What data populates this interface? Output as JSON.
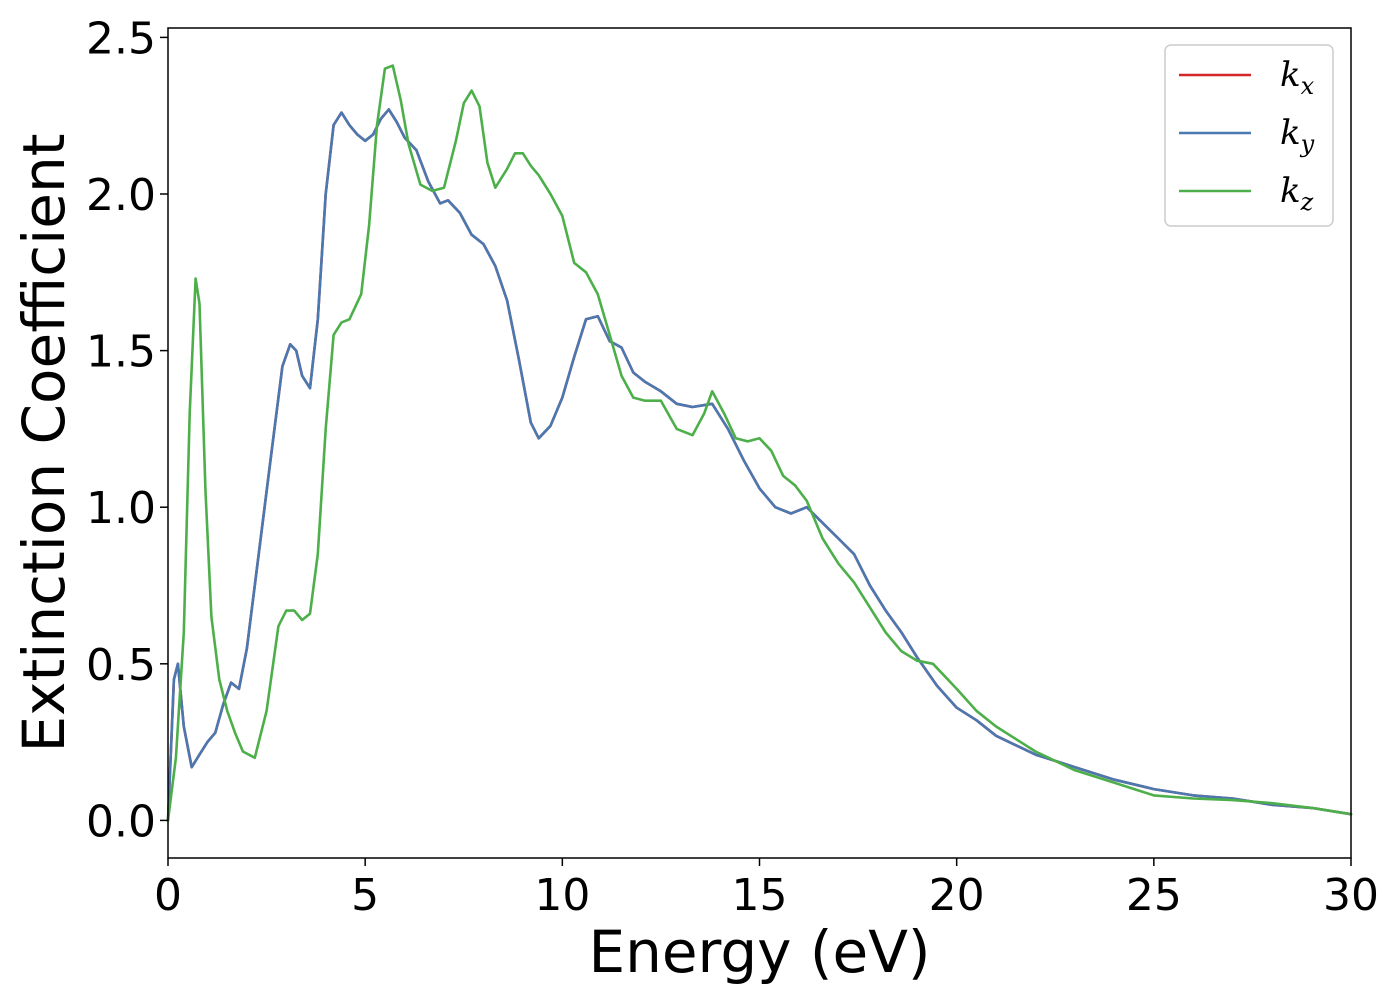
{
  "chart_data": {
    "type": "line",
    "title": "",
    "xlabel": "Energy (eV)",
    "ylabel": "Extinction Coefficient",
    "xlim": [
      0,
      30
    ],
    "ylim": [
      -0.12,
      2.53
    ],
    "xticks": [
      0,
      5,
      10,
      15,
      20,
      25,
      30
    ],
    "xtick_labels": [
      "0",
      "5",
      "10",
      "15",
      "20",
      "25",
      "30"
    ],
    "yticks": [
      0.0,
      0.5,
      1.0,
      1.5,
      2.0,
      2.5
    ],
    "ytick_labels": [
      "0.0",
      "0.5",
      "1.0",
      "1.5",
      "2.0",
      "2.5"
    ],
    "grid": false,
    "legend_position": "top-right",
    "series": [
      {
        "name": "k",
        "subscript": "x",
        "color": "#d62728",
        "x": [
          0,
          0.15,
          0.25,
          0.4,
          0.6,
          0.8,
          1.0,
          1.2,
          1.4,
          1.6,
          1.8,
          2.0,
          2.3,
          2.6,
          2.9,
          3.1,
          3.25,
          3.4,
          3.6,
          3.8,
          4.0,
          4.2,
          4.4,
          4.6,
          4.8,
          5.0,
          5.2,
          5.4,
          5.6,
          5.8,
          6.0,
          6.3,
          6.6,
          6.9,
          7.1,
          7.4,
          7.7,
          8.0,
          8.3,
          8.6,
          8.9,
          9.2,
          9.4,
          9.7,
          10.0,
          10.3,
          10.6,
          10.9,
          11.2,
          11.5,
          11.8,
          12.1,
          12.5,
          12.9,
          13.3,
          13.8,
          14.2,
          14.6,
          15.0,
          15.4,
          15.8,
          16.2,
          16.6,
          17.0,
          17.4,
          17.8,
          18.2,
          18.6,
          19.0,
          19.5,
          20.0,
          20.5,
          21.0,
          22.0,
          23.0,
          24.0,
          25.0,
          26.0,
          27.0,
          28.0,
          29.0,
          30.0
        ],
        "values": [
          0.0,
          0.45,
          0.5,
          0.3,
          0.17,
          0.21,
          0.25,
          0.28,
          0.37,
          0.44,
          0.42,
          0.55,
          0.85,
          1.15,
          1.45,
          1.52,
          1.5,
          1.42,
          1.38,
          1.6,
          2.0,
          2.22,
          2.26,
          2.22,
          2.19,
          2.17,
          2.19,
          2.24,
          2.27,
          2.23,
          2.18,
          2.14,
          2.04,
          1.97,
          1.98,
          1.94,
          1.87,
          1.84,
          1.77,
          1.66,
          1.47,
          1.27,
          1.22,
          1.26,
          1.35,
          1.48,
          1.6,
          1.61,
          1.53,
          1.51,
          1.43,
          1.4,
          1.37,
          1.33,
          1.32,
          1.33,
          1.25,
          1.15,
          1.06,
          1.0,
          0.98,
          1.0,
          0.95,
          0.9,
          0.85,
          0.75,
          0.67,
          0.6,
          0.52,
          0.43,
          0.36,
          0.32,
          0.27,
          0.21,
          0.17,
          0.13,
          0.1,
          0.08,
          0.07,
          0.05,
          0.04,
          0.02
        ]
      },
      {
        "name": "k",
        "subscript": "y",
        "color": "#4a78b0",
        "x": [
          0,
          0.15,
          0.25,
          0.4,
          0.6,
          0.8,
          1.0,
          1.2,
          1.4,
          1.6,
          1.8,
          2.0,
          2.3,
          2.6,
          2.9,
          3.1,
          3.25,
          3.4,
          3.6,
          3.8,
          4.0,
          4.2,
          4.4,
          4.6,
          4.8,
          5.0,
          5.2,
          5.4,
          5.6,
          5.8,
          6.0,
          6.3,
          6.6,
          6.9,
          7.1,
          7.4,
          7.7,
          8.0,
          8.3,
          8.6,
          8.9,
          9.2,
          9.4,
          9.7,
          10.0,
          10.3,
          10.6,
          10.9,
          11.2,
          11.5,
          11.8,
          12.1,
          12.5,
          12.9,
          13.3,
          13.8,
          14.2,
          14.6,
          15.0,
          15.4,
          15.8,
          16.2,
          16.6,
          17.0,
          17.4,
          17.8,
          18.2,
          18.6,
          19.0,
          19.5,
          20.0,
          20.5,
          21.0,
          22.0,
          23.0,
          24.0,
          25.0,
          26.0,
          27.0,
          28.0,
          29.0,
          30.0
        ],
        "values": [
          0.0,
          0.45,
          0.5,
          0.3,
          0.17,
          0.21,
          0.25,
          0.28,
          0.37,
          0.44,
          0.42,
          0.55,
          0.85,
          1.15,
          1.45,
          1.52,
          1.5,
          1.42,
          1.38,
          1.6,
          2.0,
          2.22,
          2.26,
          2.22,
          2.19,
          2.17,
          2.19,
          2.24,
          2.27,
          2.23,
          2.18,
          2.14,
          2.04,
          1.97,
          1.98,
          1.94,
          1.87,
          1.84,
          1.77,
          1.66,
          1.47,
          1.27,
          1.22,
          1.26,
          1.35,
          1.48,
          1.6,
          1.61,
          1.53,
          1.51,
          1.43,
          1.4,
          1.37,
          1.33,
          1.32,
          1.33,
          1.25,
          1.15,
          1.06,
          1.0,
          0.98,
          1.0,
          0.95,
          0.9,
          0.85,
          0.75,
          0.67,
          0.6,
          0.52,
          0.43,
          0.36,
          0.32,
          0.27,
          0.21,
          0.17,
          0.13,
          0.1,
          0.08,
          0.07,
          0.05,
          0.04,
          0.02
        ]
      },
      {
        "name": "k",
        "subscript": "z",
        "color": "#4daf4a",
        "x": [
          0,
          0.2,
          0.4,
          0.55,
          0.7,
          0.8,
          0.95,
          1.1,
          1.3,
          1.5,
          1.7,
          1.9,
          2.2,
          2.5,
          2.8,
          3.0,
          3.2,
          3.4,
          3.6,
          3.8,
          4.0,
          4.2,
          4.4,
          4.6,
          4.9,
          5.1,
          5.3,
          5.5,
          5.7,
          5.9,
          6.1,
          6.4,
          6.7,
          7.0,
          7.3,
          7.5,
          7.7,
          7.9,
          8.1,
          8.3,
          8.6,
          8.8,
          9.0,
          9.2,
          9.4,
          9.7,
          10.0,
          10.3,
          10.6,
          10.9,
          11.2,
          11.5,
          11.8,
          12.1,
          12.5,
          12.9,
          13.3,
          13.6,
          13.8,
          14.1,
          14.4,
          14.7,
          15.0,
          15.3,
          15.6,
          15.9,
          16.2,
          16.6,
          17.0,
          17.4,
          17.8,
          18.2,
          18.6,
          19.0,
          19.4,
          20.0,
          20.5,
          21.0,
          22.0,
          23.0,
          24.0,
          25.0,
          26.0,
          27.0,
          28.0,
          29.0,
          30.0
        ],
        "values": [
          0.0,
          0.2,
          0.6,
          1.3,
          1.73,
          1.65,
          1.05,
          0.65,
          0.45,
          0.35,
          0.28,
          0.22,
          0.2,
          0.35,
          0.62,
          0.67,
          0.67,
          0.64,
          0.66,
          0.85,
          1.25,
          1.55,
          1.59,
          1.6,
          1.68,
          1.9,
          2.22,
          2.4,
          2.41,
          2.3,
          2.16,
          2.03,
          2.01,
          2.02,
          2.17,
          2.29,
          2.33,
          2.28,
          2.1,
          2.02,
          2.08,
          2.13,
          2.13,
          2.09,
          2.06,
          2.0,
          1.93,
          1.78,
          1.75,
          1.68,
          1.55,
          1.42,
          1.35,
          1.34,
          1.34,
          1.25,
          1.23,
          1.3,
          1.37,
          1.3,
          1.22,
          1.21,
          1.22,
          1.18,
          1.1,
          1.07,
          1.02,
          0.9,
          0.82,
          0.76,
          0.68,
          0.6,
          0.54,
          0.51,
          0.5,
          0.42,
          0.35,
          0.3,
          0.22,
          0.16,
          0.12,
          0.08,
          0.07,
          0.065,
          0.055,
          0.04,
          0.02
        ]
      }
    ]
  }
}
